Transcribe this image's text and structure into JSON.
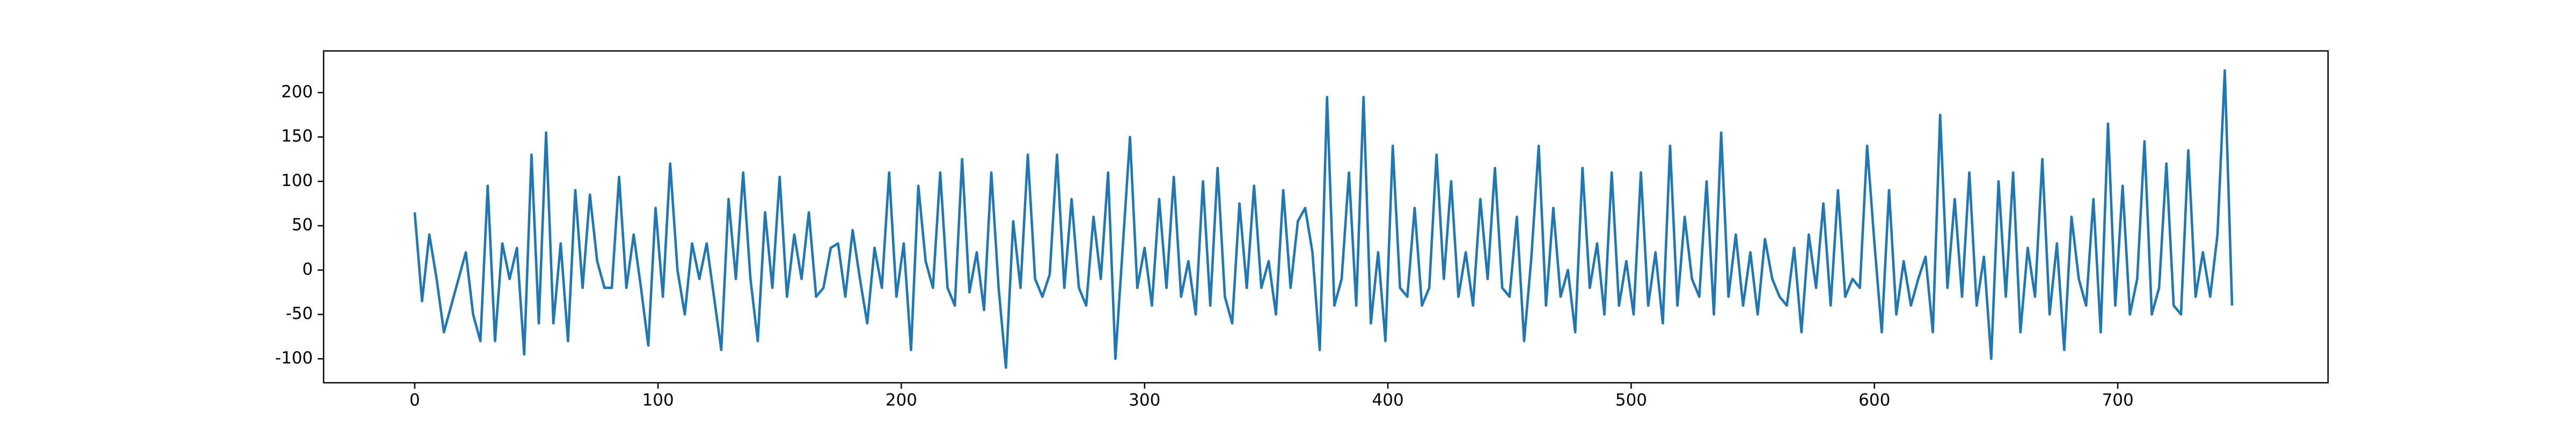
{
  "chart_data": {
    "type": "line",
    "x": [
      0,
      3,
      6,
      9,
      12,
      15,
      18,
      21,
      24,
      27,
      30,
      33,
      36,
      39,
      42,
      45,
      48,
      51,
      54,
      57,
      60,
      63,
      66,
      69,
      72,
      75,
      78,
      81,
      84,
      87,
      90,
      93,
      96,
      99,
      102,
      105,
      108,
      111,
      114,
      117,
      120,
      123,
      126,
      129,
      132,
      135,
      138,
      141,
      144,
      147,
      150,
      153,
      156,
      159,
      162,
      165,
      168,
      171,
      174,
      177,
      180,
      183,
      186,
      189,
      192,
      195,
      198,
      201,
      204,
      207,
      210,
      213,
      216,
      219,
      222,
      225,
      228,
      231,
      234,
      237,
      240,
      243,
      246,
      249,
      252,
      255,
      258,
      261,
      264,
      267,
      270,
      273,
      276,
      279,
      282,
      285,
      288,
      291,
      294,
      297,
      300,
      303,
      306,
      309,
      312,
      315,
      318,
      321,
      324,
      327,
      330,
      333,
      336,
      339,
      342,
      345,
      348,
      351,
      354,
      357,
      360,
      363,
      366,
      369,
      372,
      375,
      378,
      381,
      384,
      387,
      390,
      393,
      396,
      399,
      402,
      405,
      408,
      411,
      414,
      417,
      420,
      423,
      426,
      429,
      432,
      435,
      438,
      441,
      444,
      447,
      450,
      453,
      456,
      459,
      462,
      465,
      468,
      471,
      474,
      477,
      480,
      483,
      486,
      489,
      492,
      495,
      498,
      501,
      504,
      507,
      510,
      513,
      516,
      519,
      522,
      525,
      528,
      531,
      534,
      537,
      540,
      543,
      546,
      549,
      552,
      555,
      558,
      561,
      564,
      567,
      570,
      573,
      576,
      579,
      582,
      585,
      588,
      591,
      594,
      597,
      600,
      603,
      606,
      609,
      612,
      615,
      618,
      621,
      624,
      627,
      630,
      633,
      636,
      639,
      642,
      645,
      648,
      651,
      654,
      657,
      660,
      663,
      666,
      669,
      672,
      675,
      678,
      681,
      684,
      687,
      690,
      693,
      696,
      699,
      702,
      705,
      708,
      711,
      714,
      717,
      720,
      723,
      726,
      729,
      732,
      735,
      738,
      741,
      744,
      747
    ],
    "series": [
      {
        "color": "#1f77b4",
        "values": [
          65,
          -35,
          40,
          -10,
          -70,
          -40,
          -10,
          20,
          -50,
          -80,
          95,
          -80,
          30,
          -10,
          25,
          -95,
          130,
          -60,
          155,
          -60,
          30,
          -80,
          90,
          -20,
          85,
          10,
          -20,
          -20,
          105,
          -20,
          40,
          -20,
          -85,
          70,
          -30,
          120,
          0,
          -50,
          30,
          -10,
          30,
          -30,
          -90,
          80,
          -10,
          110,
          -10,
          -80,
          65,
          -20,
          105,
          -30,
          40,
          -10,
          65,
          -30,
          -20,
          25,
          30,
          -30,
          45,
          -10,
          -60,
          25,
          -20,
          110,
          -30,
          30,
          -90,
          95,
          10,
          -20,
          110,
          -20,
          -40,
          125,
          -25,
          20,
          -45,
          110,
          -20,
          -110,
          55,
          -20,
          130,
          -10,
          -30,
          -5,
          130,
          -20,
          80,
          -20,
          -40,
          60,
          -10,
          110,
          -100,
          25,
          150,
          -20,
          25,
          -40,
          80,
          -20,
          105,
          -30,
          10,
          -50,
          100,
          -40,
          115,
          -30,
          -60,
          75,
          -20,
          95,
          -20,
          10,
          -50,
          90,
          -20,
          55,
          70,
          20,
          -90,
          195,
          -40,
          -10,
          110,
          -40,
          195,
          -60,
          20,
          -80,
          140,
          -20,
          -30,
          70,
          -40,
          -20,
          130,
          -10,
          100,
          -30,
          20,
          -40,
          80,
          -10,
          115,
          -20,
          -30,
          60,
          -80,
          15,
          140,
          -40,
          70,
          -30,
          0,
          -70,
          115,
          -20,
          30,
          -50,
          110,
          -40,
          10,
          -50,
          110,
          -40,
          20,
          -60,
          140,
          -40,
          60,
          -10,
          -30,
          100,
          -50,
          155,
          -30,
          40,
          -40,
          20,
          -50,
          35,
          -10,
          -30,
          -40,
          25,
          -70,
          40,
          -20,
          75,
          -40,
          90,
          -30,
          -10,
          -20,
          140,
          30,
          -70,
          90,
          -50,
          10,
          -40,
          -10,
          15,
          -70,
          175,
          -20,
          80,
          -30,
          110,
          -40,
          15,
          -100,
          100,
          -30,
          110,
          -70,
          25,
          -30,
          125,
          -50,
          30,
          -90,
          60,
          -10,
          -40,
          80,
          -70,
          165,
          -40,
          95,
          -50,
          -10,
          145,
          -50,
          -20,
          120,
          -40,
          -50,
          135,
          -30,
          20,
          -30,
          40,
          225,
          -40
        ]
      }
    ],
    "xlim": [
      -37.45,
      786.45
    ],
    "ylim": [
      -127,
      247
    ],
    "xticks": [
      0,
      100,
      200,
      300,
      400,
      500,
      600,
      700
    ],
    "yticks": [
      -100,
      -50,
      0,
      50,
      100,
      150,
      200
    ]
  }
}
